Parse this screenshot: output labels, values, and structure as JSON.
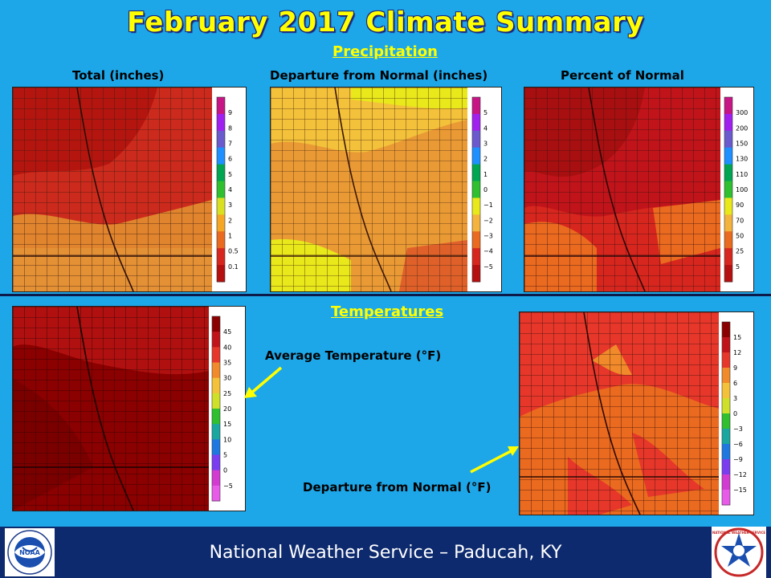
{
  "title": "February 2017 Climate Summary",
  "sections": {
    "precipitation": "Precipitation",
    "temperatures": "Temperatures"
  },
  "panels": {
    "total": {
      "caption": "Total (inches)",
      "legend": [
        "9",
        "8",
        "7",
        "6",
        "5",
        "4",
        "3",
        "2",
        "1",
        "0.5",
        "0.1"
      ],
      "colors": [
        "#c71585",
        "#a020f0",
        "#6a5acd",
        "#1e90ff",
        "#00a651",
        "#2fbf2f",
        "#d9e021",
        "#f5a623",
        "#ea6a1f",
        "#d7261e",
        "#b50f0f"
      ]
    },
    "departure_precip": {
      "caption": "Departure from Normal (inches)",
      "legend": [
        "5",
        "4",
        "3",
        "2",
        "1",
        "0",
        "−1",
        "−2",
        "−3",
        "−4",
        "−5"
      ],
      "colors": [
        "#c71585",
        "#a020f0",
        "#6a5acd",
        "#1e90ff",
        "#00a651",
        "#2fbf2f",
        "#e8e81a",
        "#f3b33d",
        "#ea6a1f",
        "#d7261e",
        "#b50f0f"
      ]
    },
    "percent": {
      "caption": "Percent of Normal",
      "legend": [
        "300",
        "200",
        "150",
        "130",
        "110",
        "100",
        "90",
        "70",
        "50",
        "25",
        "5"
      ],
      "colors": [
        "#c71585",
        "#a020f0",
        "#6a5acd",
        "#1e90ff",
        "#00a651",
        "#2fbf2f",
        "#e8e81a",
        "#f3b33d",
        "#ea6a1f",
        "#d7261e",
        "#b50f0f"
      ]
    },
    "avg_temp": {
      "caption": "Average Temperature (°F)",
      "legend": [
        "45",
        "40",
        "35",
        "30",
        "25",
        "20",
        "15",
        "10",
        "5",
        "0",
        "−5"
      ],
      "colors": [
        "#8b0000",
        "#c0141a",
        "#e6372a",
        "#f08a2a",
        "#f3c13a",
        "#cfe02a",
        "#2fbf2f",
        "#1aa7a0",
        "#1e78e0",
        "#7a3ef0",
        "#d23ad2",
        "#e85ae8"
      ]
    },
    "temp_departure": {
      "caption": "Departure from Normal (°F)",
      "legend": [
        "15",
        "12",
        "9",
        "6",
        "3",
        "0",
        "−3",
        "−6",
        "−9",
        "−12",
        "−15"
      ],
      "colors": [
        "#8b0000",
        "#c0141a",
        "#e6372a",
        "#f08a2a",
        "#f3c13a",
        "#cfe02a",
        "#2fbf2f",
        "#1aa7a0",
        "#1e78e0",
        "#7a3ef0",
        "#d23ad2",
        "#e85ae8"
      ]
    }
  },
  "footer": "National Weather Service – Paducah, KY",
  "logos": {
    "left": "NOAA",
    "right": "NATIONAL WEATHER SERVICE"
  }
}
